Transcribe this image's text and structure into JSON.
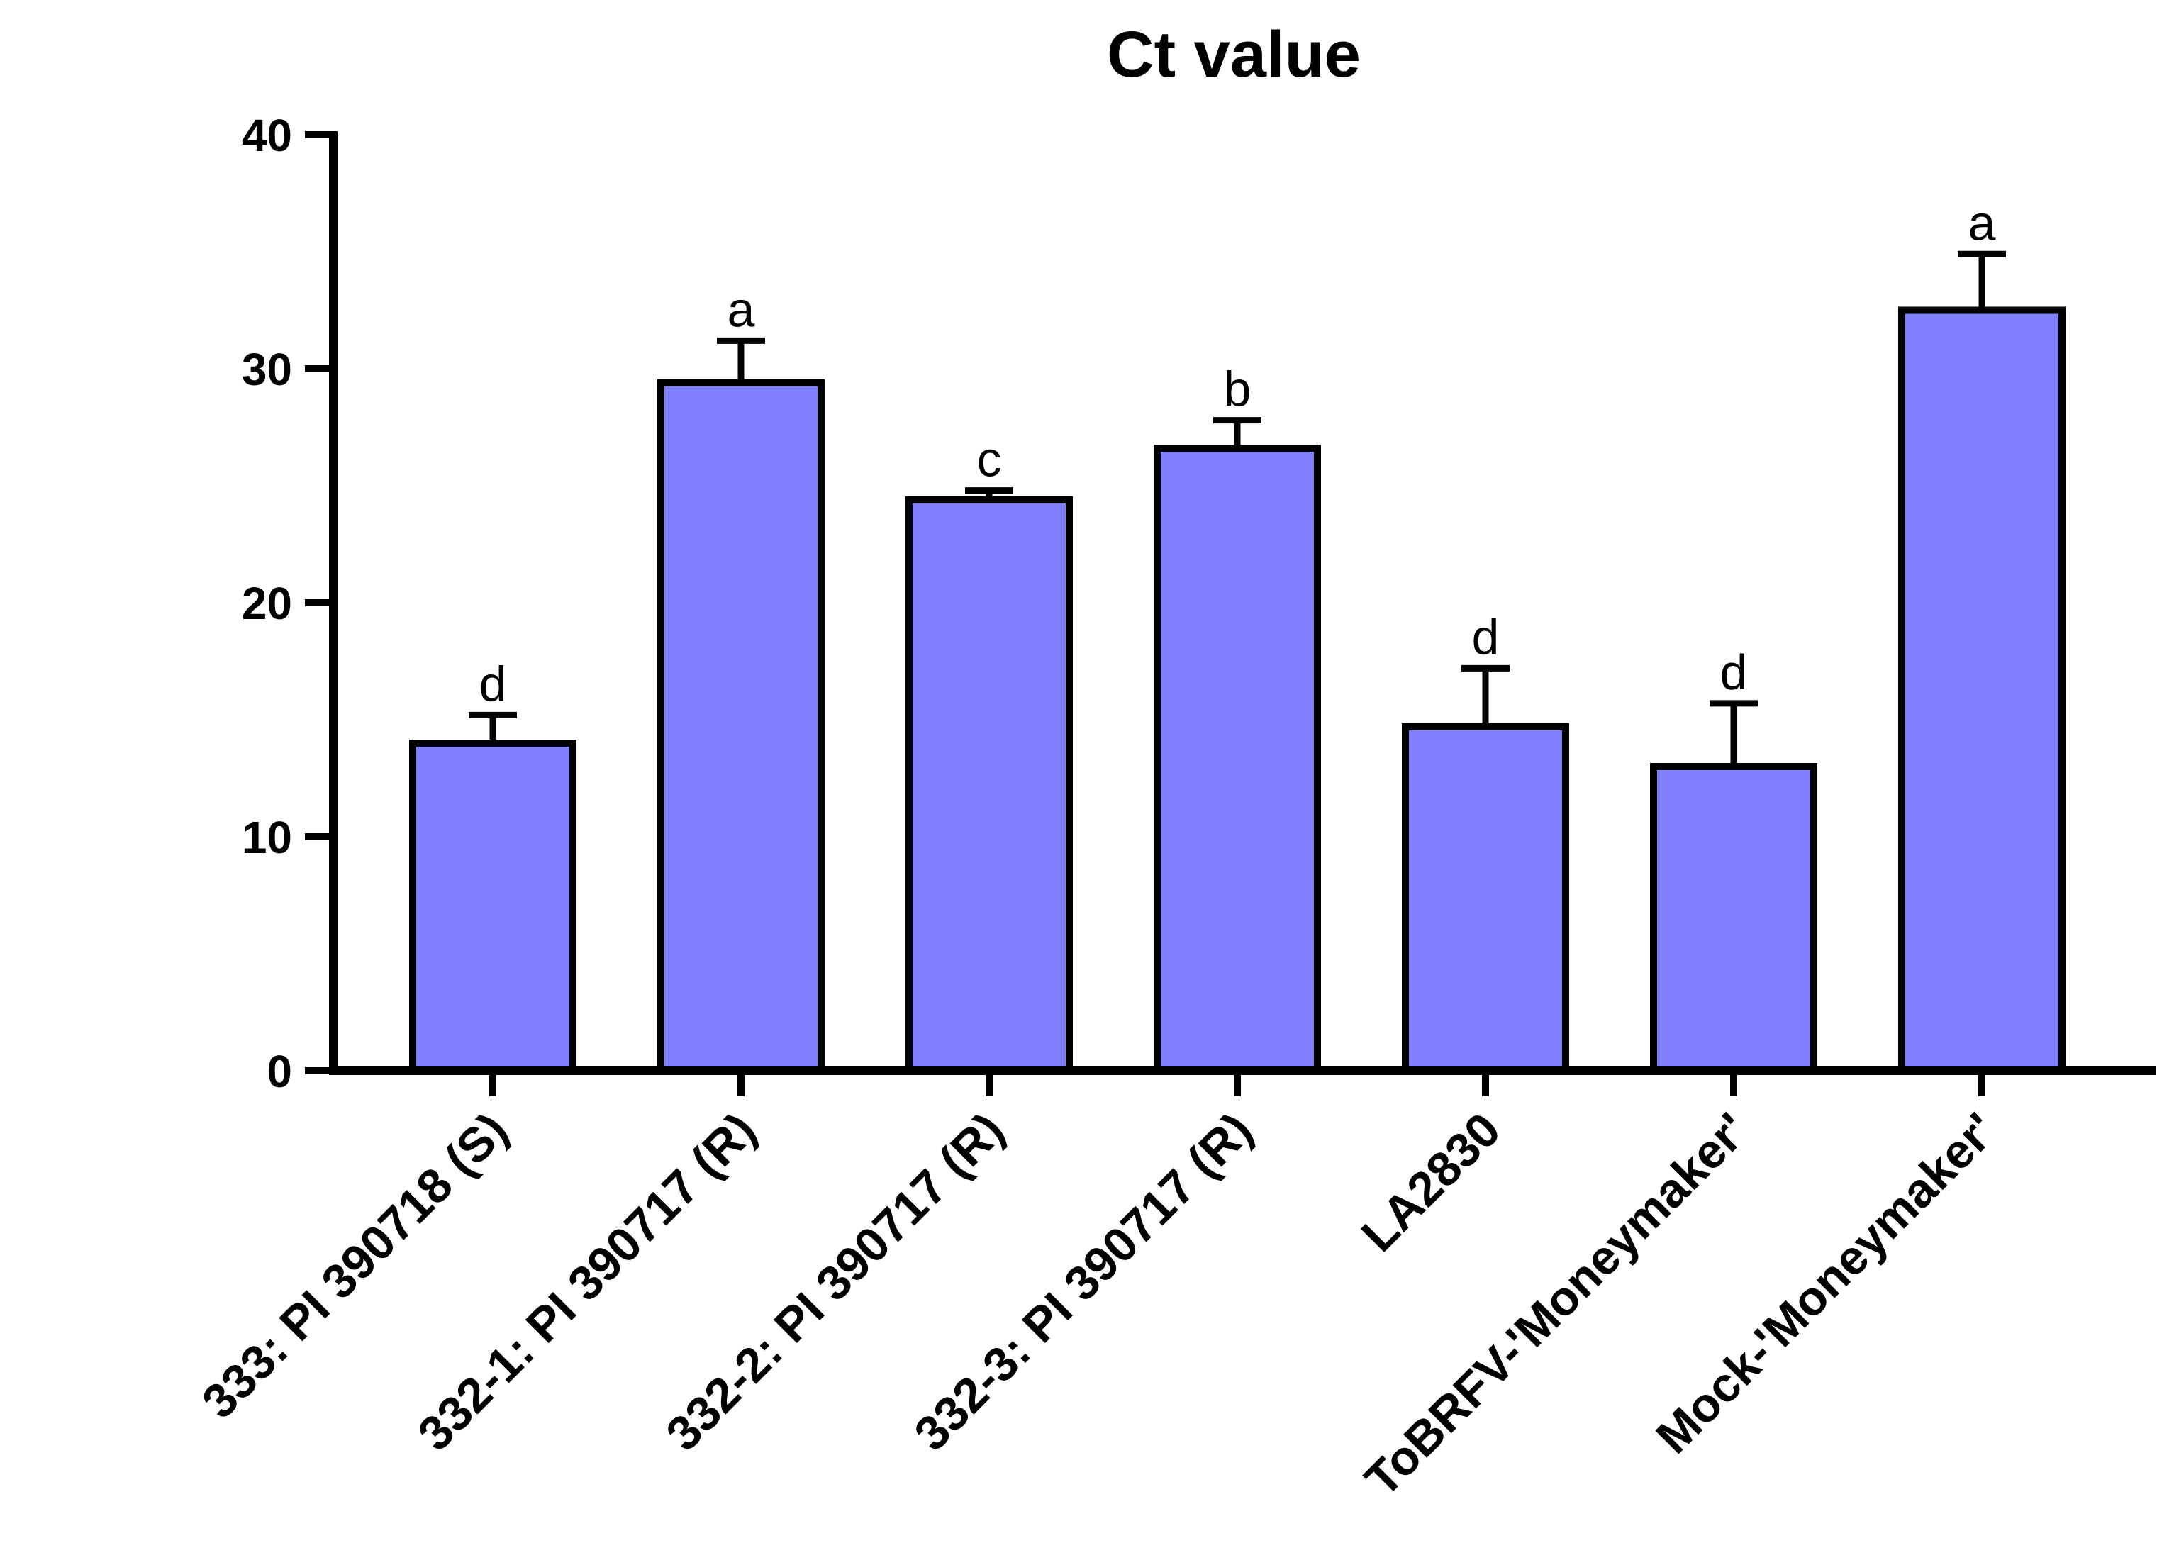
{
  "chart_data": {
    "type": "bar",
    "title": "Ct value",
    "xlabel": "",
    "ylabel": "",
    "ylim": [
      0,
      40
    ],
    "yticks": [
      0,
      10,
      20,
      30,
      40
    ],
    "categories": [
      "333: PI 390718 (S)",
      "332-1: PI 390717 (R)",
      "332-2: PI 390717 (R)",
      "332-3: PI 390717 (R)",
      "LA2830",
      "ToBRFV-'Moneymaker'",
      "Mock-'Moneymaker'"
    ],
    "values": [
      14.0,
      29.4,
      24.4,
      26.6,
      14.7,
      13.0,
      32.5
    ],
    "errors": [
      1.2,
      1.8,
      0.4,
      1.2,
      2.5,
      2.7,
      2.4
    ],
    "significance_labels": [
      "d",
      "a",
      "c",
      "b",
      "d",
      "d",
      "a"
    ],
    "bar_color": "#8080ff",
    "edge_color": "#000000"
  }
}
